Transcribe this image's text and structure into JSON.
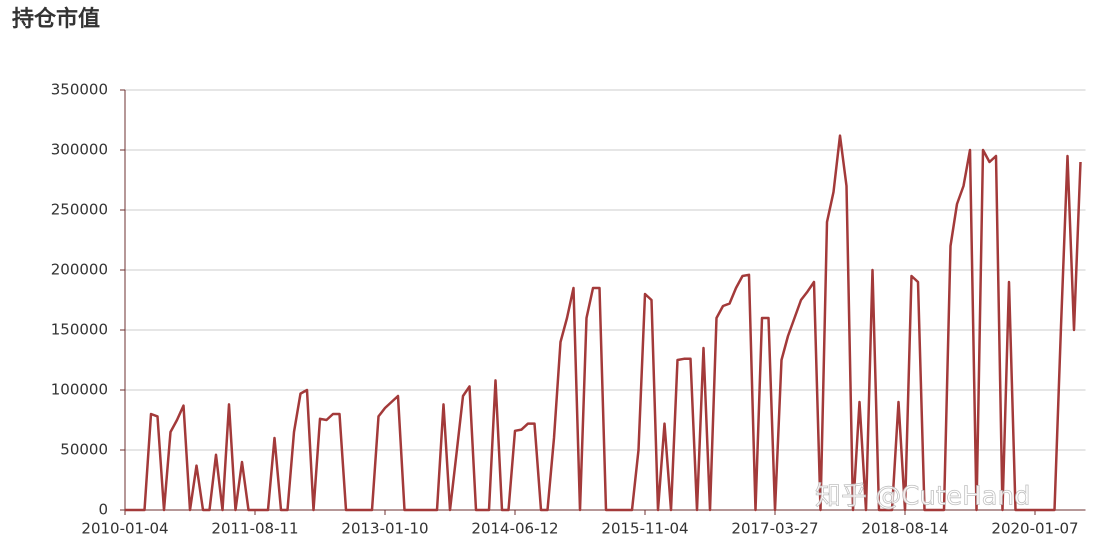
{
  "chart_data": {
    "type": "line",
    "title": "持仓市值",
    "watermark": "知乎 @CuteHand",
    "color": "#a33a3a",
    "grid": true,
    "ylim": [
      0,
      350000
    ],
    "yticks": [
      0,
      50000,
      100000,
      150000,
      200000,
      250000,
      300000,
      350000
    ],
    "categories": [
      "2010-01-04",
      null,
      null,
      null,
      null,
      null,
      null,
      null,
      null,
      null,
      null,
      null,
      null,
      null,
      null,
      null,
      null,
      null,
      null,
      null,
      "2011-08-11",
      null,
      null,
      null,
      null,
      null,
      null,
      null,
      null,
      null,
      null,
      null,
      null,
      null,
      null,
      null,
      null,
      null,
      null,
      null,
      "2013-01-10",
      null,
      null,
      null,
      null,
      null,
      null,
      null,
      null,
      null,
      null,
      null,
      null,
      null,
      null,
      null,
      null,
      null,
      null,
      null,
      "2014-06-12",
      null,
      null,
      null,
      null,
      null,
      null,
      null,
      null,
      null,
      null,
      null,
      null,
      null,
      null,
      null,
      null,
      null,
      null,
      null,
      "2015-11-04",
      null,
      null,
      null,
      null,
      null,
      null,
      null,
      null,
      null,
      null,
      null,
      null,
      null,
      null,
      null,
      null,
      null,
      null,
      null,
      "2017-03-27",
      null,
      null,
      null,
      null,
      null,
      null,
      null,
      null,
      null,
      null,
      null,
      null,
      null,
      null,
      null,
      null,
      null,
      null,
      null,
      "2018-08-14",
      null,
      null,
      null,
      null,
      null,
      null,
      null,
      null,
      null,
      null,
      null,
      null,
      null,
      null,
      null,
      null,
      null,
      null,
      null,
      "2020-01-07",
      null,
      null,
      null,
      null,
      null,
      null,
      null
    ],
    "values": [
      0,
      0,
      0,
      0,
      80000,
      78000,
      0,
      65000,
      75000,
      87000,
      0,
      37000,
      0,
      0,
      46000,
      0,
      88000,
      0,
      40000,
      0,
      0,
      0,
      0,
      60000,
      0,
      0,
      65000,
      97000,
      100000,
      0,
      76000,
      75000,
      80000,
      80000,
      0,
      0,
      0,
      0,
      0,
      78000,
      85000,
      90000,
      95000,
      0,
      0,
      0,
      0,
      0,
      0,
      88000,
      0,
      47000,
      95000,
      103000,
      0,
      0,
      0,
      108000,
      0,
      0,
      66000,
      67000,
      72000,
      72000,
      0,
      0,
      60000,
      140000,
      160000,
      185000,
      0,
      160000,
      185000,
      185000,
      0,
      0,
      0,
      0,
      0,
      50000,
      180000,
      175000,
      0,
      72000,
      0,
      125000,
      126000,
      126000,
      0,
      135000,
      0,
      160000,
      170000,
      172000,
      185000,
      195000,
      196000,
      0,
      160000,
      160000,
      0,
      125000,
      145000,
      160000,
      175000,
      182000,
      190000,
      0,
      240000,
      265000,
      312000,
      270000,
      0,
      90000,
      0,
      200000,
      0,
      0,
      0,
      90000,
      0,
      195000,
      190000,
      0,
      0,
      0,
      0,
      220000,
      255000,
      270000,
      300000,
      0,
      300000,
      290000,
      295000,
      0,
      190000,
      0,
      0,
      0,
      0,
      0,
      0,
      0,
      153000,
      295000,
      150000,
      290000
    ]
  }
}
